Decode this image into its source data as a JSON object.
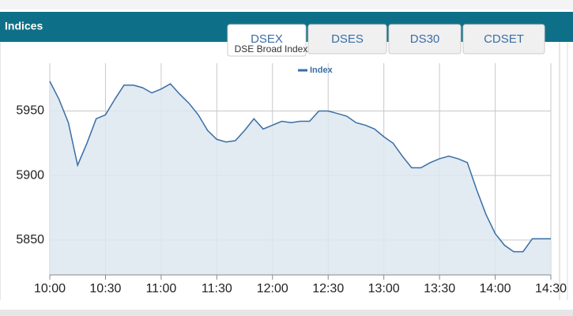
{
  "header": {
    "title": "Indices"
  },
  "tabs": [
    "DSEX",
    "DSES",
    "DS30",
    "CDSET"
  ],
  "chart_data": {
    "type": "area",
    "title": "DSE Broad Index",
    "x": [
      "10:00",
      "10:05",
      "10:10",
      "10:15",
      "10:20",
      "10:25",
      "10:30",
      "10:35",
      "10:40",
      "10:45",
      "10:50",
      "10:55",
      "11:00",
      "11:05",
      "11:10",
      "11:15",
      "11:20",
      "11:25",
      "11:30",
      "11:35",
      "11:40",
      "11:45",
      "11:50",
      "11:55",
      "12:00",
      "12:05",
      "12:10",
      "12:15",
      "12:20",
      "12:25",
      "12:30",
      "12:35",
      "12:40",
      "12:45",
      "12:50",
      "12:55",
      "13:00",
      "13:05",
      "13:10",
      "13:15",
      "13:20",
      "13:25",
      "13:30",
      "13:35",
      "13:40",
      "13:45",
      "13:50",
      "13:55",
      "14:00",
      "14:05",
      "14:10",
      "14:15",
      "14:20",
      "14:25",
      "14:30"
    ],
    "series": [
      {
        "name": "Index",
        "color": "#3a6ea5",
        "values": [
          5973,
          5959,
          5941,
          5908,
          5925,
          5944,
          5947,
          5959,
          5970,
          5970,
          5968,
          5964,
          5967,
          5971,
          5963,
          5956,
          5947,
          5935,
          5928,
          5926,
          5927,
          5935,
          5944,
          5936,
          5939,
          5942,
          5941,
          5942,
          5942,
          5950,
          5950,
          5948,
          5946,
          5941,
          5939,
          5936,
          5930,
          5925,
          5915,
          5906,
          5906,
          5910,
          5913,
          5915,
          5913,
          5910,
          5889,
          5870,
          5855,
          5846,
          5841,
          5841,
          5851,
          5851,
          5851
        ]
      }
    ],
    "xlim": [
      "10:00",
      "14:30"
    ],
    "xticks": [
      "10:00",
      "10:30",
      "11:00",
      "11:30",
      "12:00",
      "12:30",
      "13:00",
      "13:30",
      "14:00",
      "14:30"
    ],
    "ylim": [
      5823,
      5987
    ],
    "yticks": [
      5850,
      5900,
      5950
    ],
    "grid": true
  }
}
